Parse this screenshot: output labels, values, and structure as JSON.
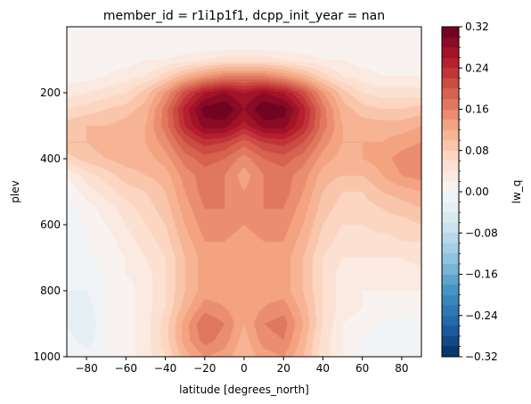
{
  "chart_data": {
    "type": "heatmap",
    "title": "member_id = r1i1p1f1, dcpp_init_year = nan",
    "xlabel": "latitude [degrees_north]",
    "ylabel": "plev",
    "colorbar_label": "lw_q",
    "xlim": [
      -90,
      90
    ],
    "ylim": [
      1000,
      0
    ],
    "x_ticks": [
      -80,
      -60,
      -40,
      -20,
      0,
      20,
      40,
      60,
      80
    ],
    "y_ticks": [
      200,
      400,
      600,
      800,
      1000
    ],
    "colorbar_range": [
      -0.32,
      0.32
    ],
    "colorbar_ticks": [
      "0.32",
      "0.24",
      "0.16",
      "0.08",
      "0.00",
      "−0.08",
      "−0.16",
      "−0.24",
      "−0.32"
    ],
    "colormap": "RdBu_r",
    "contour_levels": 32,
    "lat": [
      -90,
      -80,
      -70,
      -60,
      -50,
      -40,
      -30,
      -20,
      -10,
      0,
      10,
      20,
      30,
      40,
      50,
      60,
      70,
      80,
      90
    ],
    "plev": [
      50,
      100,
      150,
      200,
      250,
      300,
      350,
      400,
      450,
      500,
      550,
      600,
      650,
      700,
      750,
      800,
      850,
      900,
      950,
      1000
    ],
    "values": [
      [
        0.0,
        0.0,
        0.0,
        0.0,
        0.0,
        0.0,
        0.0,
        0.0,
        0.0,
        0.0,
        0.0,
        0.0,
        0.0,
        0.0,
        0.0,
        0.0,
        0.0,
        0.0,
        0.0
      ],
      [
        0.0,
        0.01,
        0.01,
        0.01,
        0.02,
        0.02,
        0.03,
        0.04,
        0.05,
        0.05,
        0.05,
        0.04,
        0.03,
        0.02,
        0.02,
        0.01,
        0.01,
        0.01,
        0.01
      ],
      [
        0.01,
        0.01,
        0.02,
        0.03,
        0.04,
        0.07,
        0.11,
        0.14,
        0.16,
        0.16,
        0.16,
        0.14,
        0.11,
        0.07,
        0.04,
        0.03,
        0.02,
        0.02,
        0.02
      ],
      [
        0.03,
        0.04,
        0.05,
        0.06,
        0.09,
        0.14,
        0.21,
        0.26,
        0.28,
        0.26,
        0.28,
        0.26,
        0.21,
        0.14,
        0.09,
        0.06,
        0.05,
        0.05,
        0.05
      ],
      [
        0.06,
        0.07,
        0.08,
        0.09,
        0.11,
        0.17,
        0.25,
        0.31,
        0.32,
        0.28,
        0.32,
        0.31,
        0.25,
        0.17,
        0.11,
        0.09,
        0.08,
        0.08,
        0.09
      ],
      [
        0.09,
        0.1,
        0.1,
        0.11,
        0.12,
        0.17,
        0.24,
        0.29,
        0.29,
        0.25,
        0.29,
        0.29,
        0.24,
        0.17,
        0.12,
        0.11,
        0.11,
        0.11,
        0.12
      ],
      [
        0.1,
        0.1,
        0.11,
        0.11,
        0.12,
        0.15,
        0.2,
        0.23,
        0.22,
        0.19,
        0.22,
        0.23,
        0.2,
        0.15,
        0.12,
        0.12,
        0.12,
        0.13,
        0.14
      ],
      [
        0.07,
        0.09,
        0.1,
        0.11,
        0.11,
        0.13,
        0.17,
        0.19,
        0.18,
        0.15,
        0.18,
        0.19,
        0.17,
        0.13,
        0.11,
        0.12,
        0.13,
        0.15,
        0.16
      ],
      [
        0.02,
        0.05,
        0.07,
        0.09,
        0.1,
        0.11,
        0.15,
        0.17,
        0.16,
        0.13,
        0.16,
        0.17,
        0.15,
        0.11,
        0.1,
        0.1,
        0.12,
        0.14,
        0.15
      ],
      [
        0.0,
        0.03,
        0.05,
        0.07,
        0.08,
        0.1,
        0.14,
        0.17,
        0.16,
        0.14,
        0.16,
        0.17,
        0.14,
        0.1,
        0.08,
        0.08,
        0.1,
        0.11,
        0.12
      ],
      [
        -0.01,
        0.01,
        0.03,
        0.05,
        0.07,
        0.09,
        0.13,
        0.16,
        0.16,
        0.15,
        0.16,
        0.16,
        0.13,
        0.09,
        0.07,
        0.07,
        0.08,
        0.09,
        0.1
      ],
      [
        -0.01,
        0.0,
        0.02,
        0.04,
        0.06,
        0.08,
        0.12,
        0.15,
        0.15,
        0.14,
        0.15,
        0.15,
        0.12,
        0.08,
        0.06,
        0.06,
        0.07,
        0.07,
        0.08
      ],
      [
        -0.02,
        0.0,
        0.01,
        0.03,
        0.05,
        0.07,
        0.11,
        0.14,
        0.14,
        0.13,
        0.14,
        0.14,
        0.11,
        0.07,
        0.05,
        0.05,
        0.05,
        0.06,
        0.06
      ],
      [
        -0.02,
        -0.01,
        0.01,
        0.02,
        0.04,
        0.06,
        0.1,
        0.13,
        0.13,
        0.12,
        0.13,
        0.13,
        0.1,
        0.06,
        0.04,
        0.04,
        0.04,
        0.04,
        0.05
      ],
      [
        -0.02,
        -0.01,
        0.0,
        0.02,
        0.03,
        0.06,
        0.1,
        0.13,
        0.13,
        0.12,
        0.13,
        0.13,
        0.1,
        0.06,
        0.03,
        0.03,
        0.03,
        0.03,
        0.03
      ],
      [
        -0.02,
        -0.02,
        0.0,
        0.01,
        0.03,
        0.06,
        0.1,
        0.13,
        0.13,
        0.12,
        0.13,
        0.13,
        0.1,
        0.06,
        0.03,
        0.02,
        0.02,
        0.02,
        0.02
      ],
      [
        -0.02,
        -0.03,
        0.0,
        0.01,
        0.03,
        0.06,
        0.11,
        0.15,
        0.14,
        0.12,
        0.14,
        0.15,
        0.11,
        0.06,
        0.03,
        0.02,
        0.01,
        0.01,
        0.01
      ],
      [
        -0.02,
        -0.04,
        0.0,
        0.01,
        0.03,
        0.07,
        0.13,
        0.18,
        0.16,
        0.12,
        0.16,
        0.17,
        0.12,
        0.06,
        0.02,
        0.01,
        0.0,
        -0.01,
        0.0
      ],
      [
        -0.01,
        -0.03,
        0.0,
        0.01,
        0.03,
        0.07,
        0.13,
        0.17,
        0.15,
        0.11,
        0.15,
        0.16,
        0.11,
        0.05,
        0.02,
        0.0,
        -0.01,
        -0.01,
        0.0
      ],
      [
        0.0,
        -0.01,
        0.0,
        0.01,
        0.03,
        0.06,
        0.11,
        0.14,
        0.13,
        0.1,
        0.13,
        0.14,
        0.1,
        0.05,
        0.02,
        0.0,
        0.0,
        0.0,
        0.0
      ]
    ]
  }
}
